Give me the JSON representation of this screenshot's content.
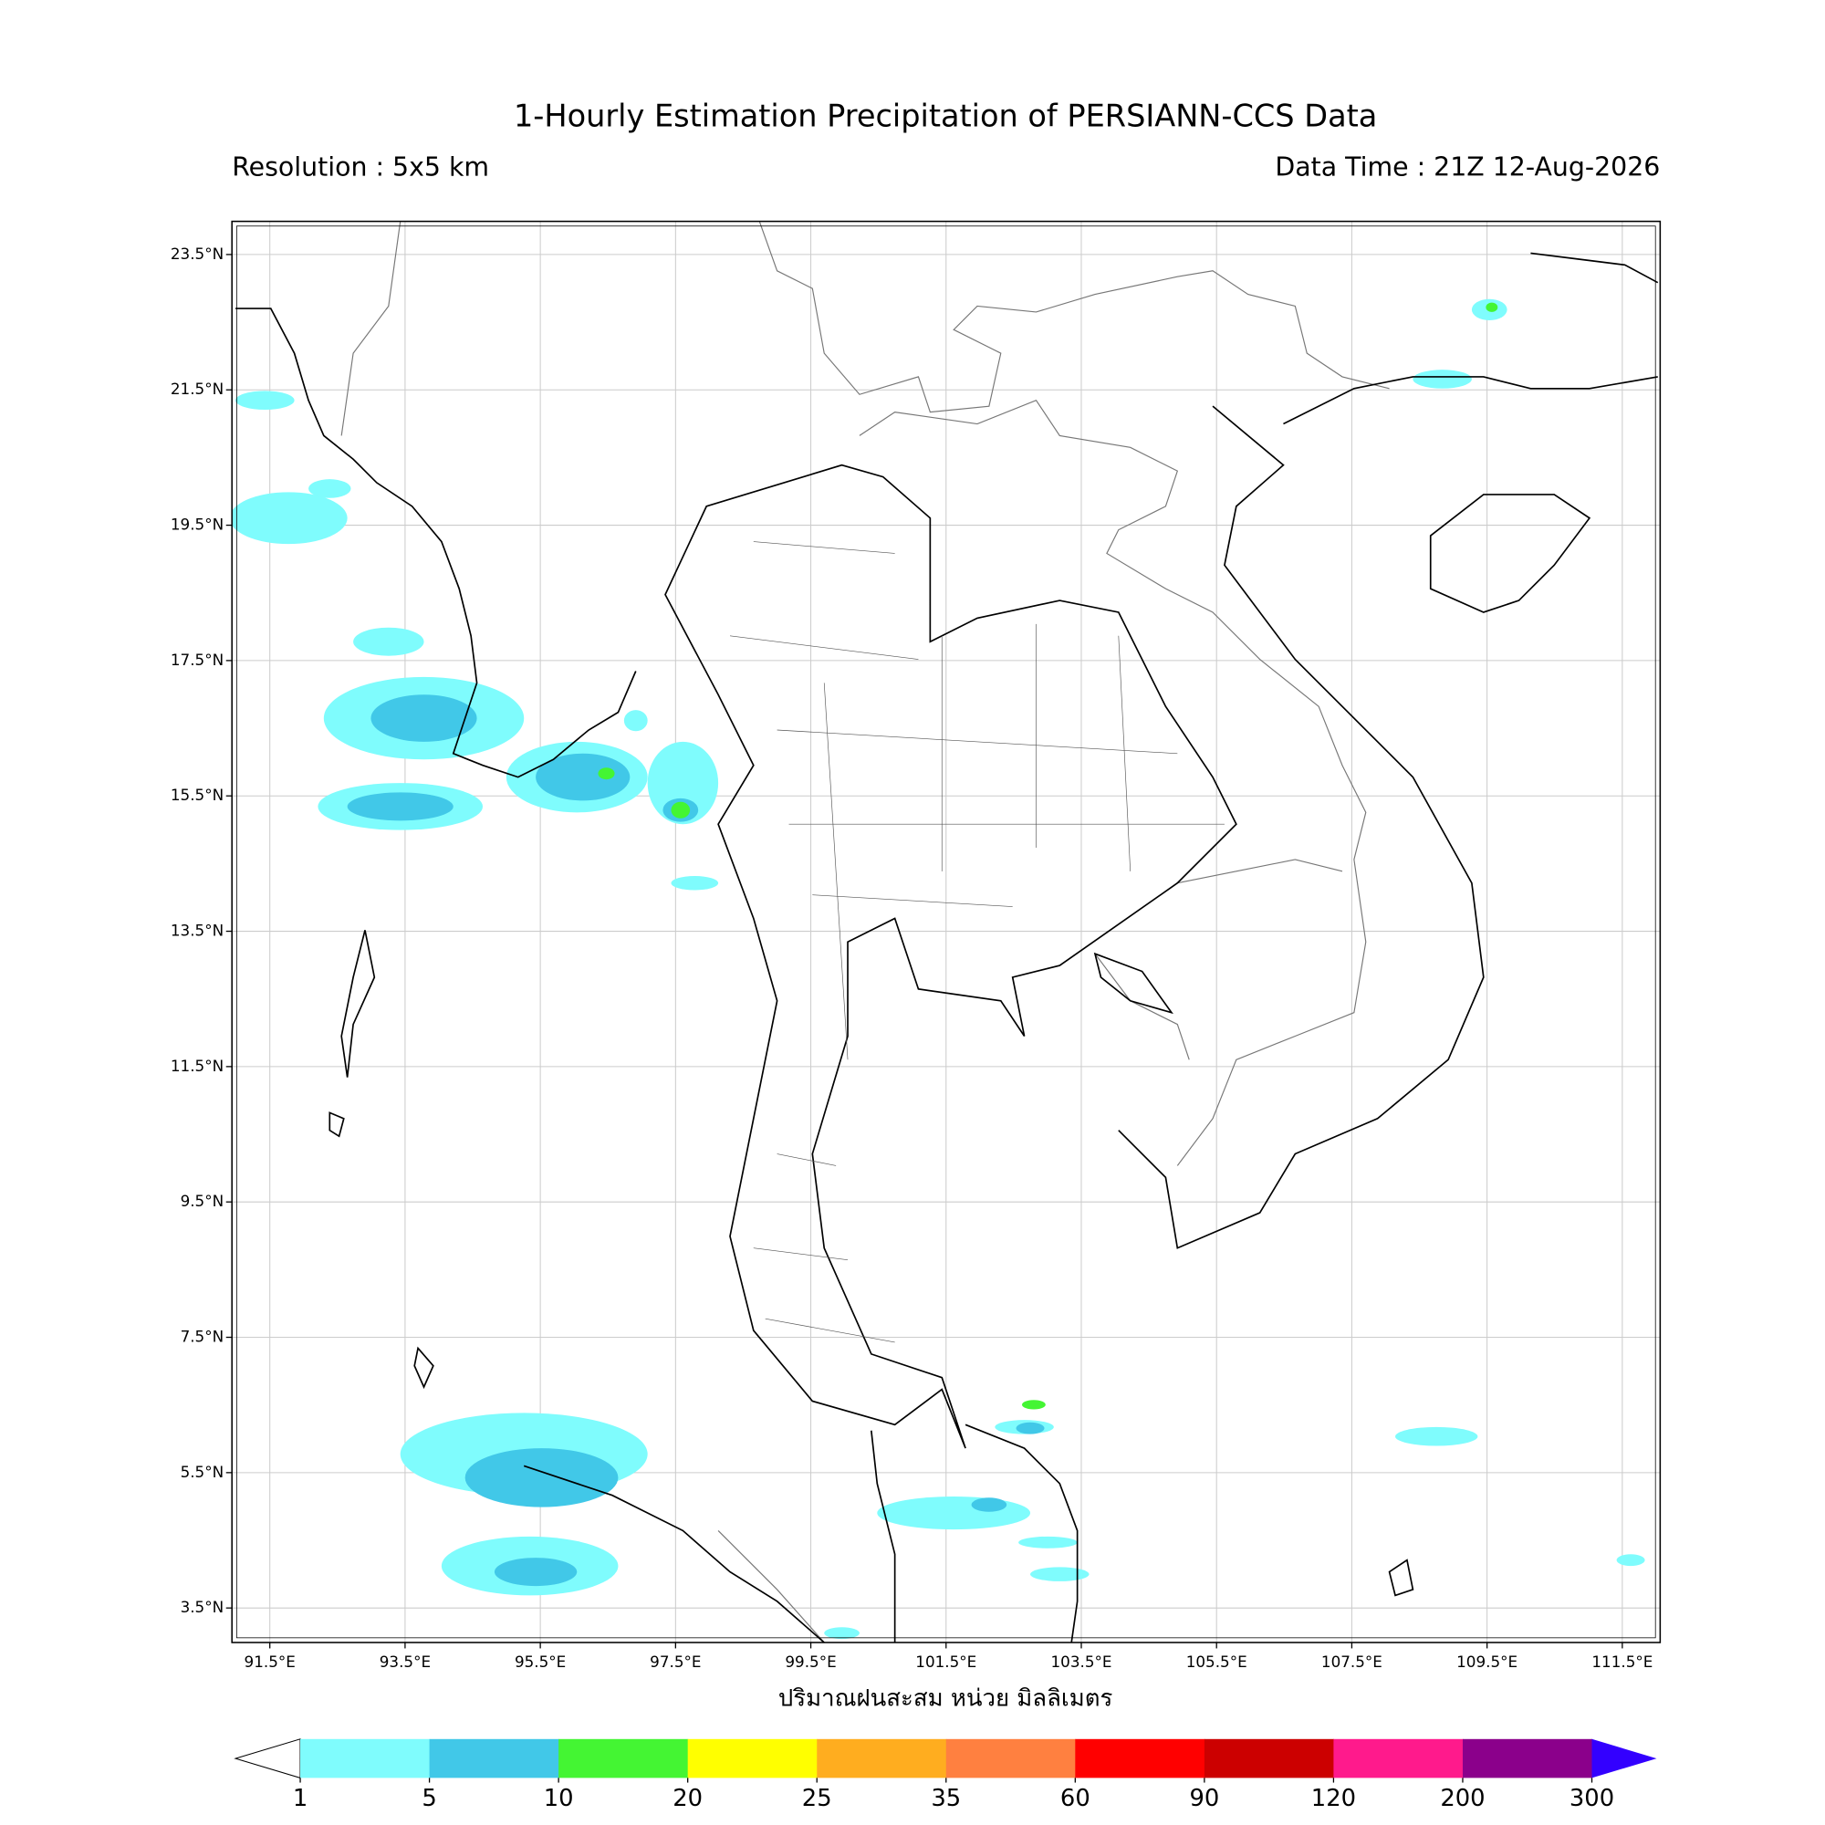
{
  "header": {
    "title": "1-Hourly Estimation Precipitation of PERSIANN-CCS Data",
    "resolution": "Resolution : 5x5 km",
    "data_time": "Data Time : 21Z 12-Aug-2026"
  },
  "map": {
    "xlim": [
      90.94,
      112.06
    ],
    "ylim": [
      2.99,
      23.99
    ],
    "grid": true,
    "xticks": [
      {
        "value": 91.5,
        "label": "91.5°E"
      },
      {
        "value": 93.5,
        "label": "93.5°E"
      },
      {
        "value": 95.5,
        "label": "95.5°E"
      },
      {
        "value": 97.5,
        "label": "97.5°E"
      },
      {
        "value": 99.5,
        "label": "99.5°E"
      },
      {
        "value": 101.5,
        "label": "101.5°E"
      },
      {
        "value": 103.5,
        "label": "103.5°E"
      },
      {
        "value": 105.5,
        "label": "105.5°E"
      },
      {
        "value": 107.5,
        "label": "107.5°E"
      },
      {
        "value": 109.5,
        "label": "109.5°E"
      },
      {
        "value": 111.5,
        "label": "111.5°E"
      }
    ],
    "yticks": [
      {
        "value": 3.5,
        "label": "3.5°N"
      },
      {
        "value": 5.5,
        "label": "5.5°N"
      },
      {
        "value": 7.5,
        "label": "7.5°N"
      },
      {
        "value": 9.5,
        "label": "9.5°N"
      },
      {
        "value": 11.5,
        "label": "11.5°N"
      },
      {
        "value": 13.5,
        "label": "13.5°N"
      },
      {
        "value": 15.5,
        "label": "15.5°N"
      },
      {
        "value": 17.5,
        "label": "17.5°N"
      },
      {
        "value": 19.5,
        "label": "19.5°N"
      },
      {
        "value": 21.5,
        "label": "21.5°N"
      },
      {
        "value": 23.5,
        "label": "23.5°N"
      }
    ],
    "xlabel": "ปริมาณฝนสะสม หน่วย มิลลิเมตร"
  },
  "colorbar": {
    "levels": [
      1,
      5,
      10,
      20,
      25,
      35,
      60,
      90,
      120,
      200,
      300
    ],
    "colors": [
      "#7ffcfd",
      "#41c8e8",
      "#44f533",
      "#ffff00",
      "#ffad1f",
      "#ff8040",
      "#ff0000",
      "#cc0000",
      "#ff1a8c",
      "#8b008b"
    ],
    "under_color": "#ffffff",
    "over_color": "#3300ff"
  }
}
